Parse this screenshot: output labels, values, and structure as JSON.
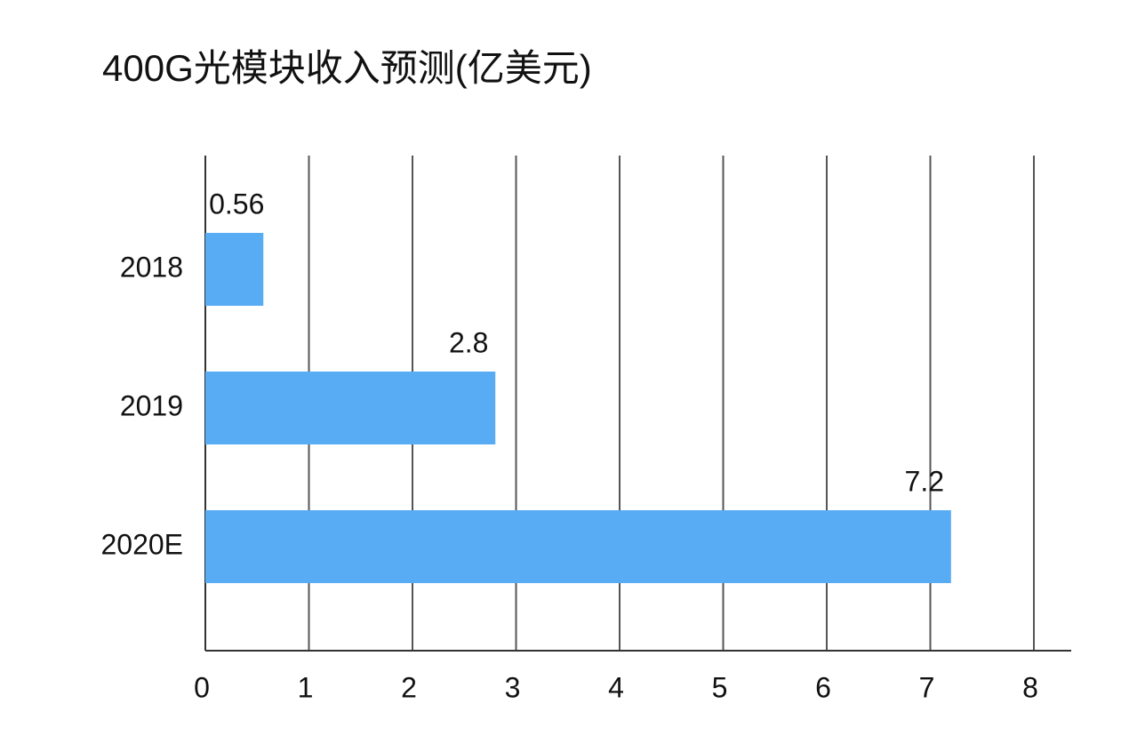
{
  "chart_data": {
    "type": "barh",
    "title": "400G光模块收入预测(亿美元)",
    "categories": [
      "2018",
      "2019",
      "2020E"
    ],
    "values": [
      0.56,
      2.8,
      7.2
    ],
    "color": "#58acf4",
    "xlim": [
      0,
      8
    ],
    "xticks": [
      0,
      1,
      2,
      3,
      4,
      5,
      6,
      7,
      8
    ],
    "grid": true
  }
}
